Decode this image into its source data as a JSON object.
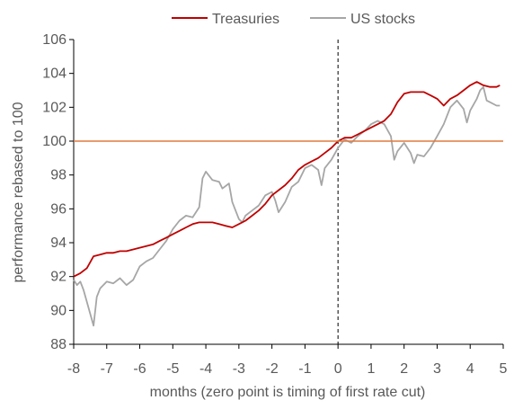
{
  "chart_data": {
    "type": "line",
    "xlabel": "months (zero point is timing of first rate cut)",
    "ylabel": "performance rebased to 100",
    "xlim": [
      -8,
      5
    ],
    "ylim": [
      88,
      106
    ],
    "xticks": [
      "-8",
      "-7",
      "-6",
      "-5",
      "-4",
      "-3",
      "-2",
      "-1",
      "0",
      "1",
      "2",
      "3",
      "4",
      "5"
    ],
    "yticks": [
      "88",
      "90",
      "92",
      "94",
      "96",
      "98",
      "100",
      "102",
      "104",
      "106"
    ],
    "legend_position": "top",
    "reference_line": {
      "y": 100,
      "color": "#E07A3F"
    },
    "event_line": {
      "x": 0,
      "style": "dashed"
    },
    "series": [
      {
        "name": "Treasuries",
        "color": "#C00000",
        "points": [
          [
            -8.0,
            92.0
          ],
          [
            -7.8,
            92.2
          ],
          [
            -7.6,
            92.5
          ],
          [
            -7.4,
            93.2
          ],
          [
            -7.2,
            93.3
          ],
          [
            -7.0,
            93.4
          ],
          [
            -6.8,
            93.4
          ],
          [
            -6.6,
            93.5
          ],
          [
            -6.4,
            93.5
          ],
          [
            -6.2,
            93.6
          ],
          [
            -6.0,
            93.7
          ],
          [
            -5.8,
            93.8
          ],
          [
            -5.6,
            93.9
          ],
          [
            -5.4,
            94.1
          ],
          [
            -5.2,
            94.3
          ],
          [
            -5.0,
            94.5
          ],
          [
            -4.8,
            94.7
          ],
          [
            -4.6,
            94.9
          ],
          [
            -4.4,
            95.1
          ],
          [
            -4.2,
            95.2
          ],
          [
            -4.0,
            95.2
          ],
          [
            -3.8,
            95.2
          ],
          [
            -3.6,
            95.1
          ],
          [
            -3.4,
            95.0
          ],
          [
            -3.2,
            94.9
          ],
          [
            -3.0,
            95.1
          ],
          [
            -2.8,
            95.3
          ],
          [
            -2.6,
            95.6
          ],
          [
            -2.4,
            95.9
          ],
          [
            -2.2,
            96.3
          ],
          [
            -2.0,
            96.8
          ],
          [
            -1.8,
            97.1
          ],
          [
            -1.6,
            97.4
          ],
          [
            -1.4,
            97.8
          ],
          [
            -1.2,
            98.3
          ],
          [
            -1.0,
            98.6
          ],
          [
            -0.8,
            98.8
          ],
          [
            -0.6,
            99.0
          ],
          [
            -0.4,
            99.3
          ],
          [
            -0.2,
            99.6
          ],
          [
            0.0,
            100.0
          ],
          [
            0.2,
            100.2
          ],
          [
            0.4,
            100.2
          ],
          [
            0.6,
            100.4
          ],
          [
            0.8,
            100.6
          ],
          [
            1.0,
            100.8
          ],
          [
            1.2,
            101.0
          ],
          [
            1.4,
            101.2
          ],
          [
            1.6,
            101.6
          ],
          [
            1.8,
            102.3
          ],
          [
            2.0,
            102.8
          ],
          [
            2.2,
            102.9
          ],
          [
            2.4,
            102.9
          ],
          [
            2.6,
            102.9
          ],
          [
            2.8,
            102.7
          ],
          [
            3.0,
            102.5
          ],
          [
            3.2,
            102.1
          ],
          [
            3.4,
            102.5
          ],
          [
            3.6,
            102.7
          ],
          [
            3.8,
            103.0
          ],
          [
            4.0,
            103.3
          ],
          [
            4.2,
            103.5
          ],
          [
            4.4,
            103.3
          ],
          [
            4.6,
            103.2
          ],
          [
            4.8,
            103.2
          ],
          [
            4.9,
            103.3
          ]
        ]
      },
      {
        "name": "US stocks",
        "color": "#A6A6A6",
        "points": [
          [
            -8.0,
            91.8
          ],
          [
            -7.9,
            91.5
          ],
          [
            -7.8,
            91.7
          ],
          [
            -7.7,
            91.2
          ],
          [
            -7.6,
            90.5
          ],
          [
            -7.5,
            89.8
          ],
          [
            -7.4,
            89.1
          ],
          [
            -7.3,
            90.8
          ],
          [
            -7.2,
            91.3
          ],
          [
            -7.0,
            91.7
          ],
          [
            -6.8,
            91.6
          ],
          [
            -6.6,
            91.9
          ],
          [
            -6.4,
            91.5
          ],
          [
            -6.2,
            91.8
          ],
          [
            -6.0,
            92.6
          ],
          [
            -5.8,
            92.9
          ],
          [
            -5.6,
            93.1
          ],
          [
            -5.4,
            93.6
          ],
          [
            -5.2,
            94.1
          ],
          [
            -5.0,
            94.8
          ],
          [
            -4.8,
            95.3
          ],
          [
            -4.6,
            95.6
          ],
          [
            -4.4,
            95.5
          ],
          [
            -4.2,
            96.1
          ],
          [
            -4.1,
            97.8
          ],
          [
            -4.0,
            98.2
          ],
          [
            -3.8,
            97.7
          ],
          [
            -3.6,
            97.6
          ],
          [
            -3.5,
            97.2
          ],
          [
            -3.3,
            97.5
          ],
          [
            -3.2,
            96.4
          ],
          [
            -3.0,
            95.4
          ],
          [
            -2.9,
            95.2
          ],
          [
            -2.8,
            95.6
          ],
          [
            -2.6,
            95.9
          ],
          [
            -2.4,
            96.2
          ],
          [
            -2.2,
            96.8
          ],
          [
            -2.0,
            97.0
          ],
          [
            -1.9,
            96.5
          ],
          [
            -1.8,
            95.8
          ],
          [
            -1.6,
            96.4
          ],
          [
            -1.4,
            97.3
          ],
          [
            -1.2,
            97.6
          ],
          [
            -1.0,
            98.4
          ],
          [
            -0.8,
            98.6
          ],
          [
            -0.6,
            98.3
          ],
          [
            -0.5,
            97.4
          ],
          [
            -0.4,
            98.4
          ],
          [
            -0.2,
            98.9
          ],
          [
            0.0,
            99.6
          ],
          [
            0.2,
            100.1
          ],
          [
            0.4,
            99.9
          ],
          [
            0.6,
            100.3
          ],
          [
            0.8,
            100.6
          ],
          [
            1.0,
            101.0
          ],
          [
            1.2,
            101.2
          ],
          [
            1.4,
            101.0
          ],
          [
            1.6,
            100.3
          ],
          [
            1.7,
            98.9
          ],
          [
            1.8,
            99.4
          ],
          [
            2.0,
            99.9
          ],
          [
            2.2,
            99.3
          ],
          [
            2.3,
            98.7
          ],
          [
            2.4,
            99.2
          ],
          [
            2.6,
            99.1
          ],
          [
            2.8,
            99.6
          ],
          [
            3.0,
            100.3
          ],
          [
            3.2,
            101.0
          ],
          [
            3.4,
            102.0
          ],
          [
            3.6,
            102.4
          ],
          [
            3.8,
            101.9
          ],
          [
            3.9,
            101.1
          ],
          [
            4.0,
            101.8
          ],
          [
            4.2,
            102.5
          ],
          [
            4.3,
            103.0
          ],
          [
            4.4,
            103.2
          ],
          [
            4.5,
            102.4
          ],
          [
            4.6,
            102.3
          ],
          [
            4.8,
            102.1
          ],
          [
            4.9,
            102.1
          ]
        ]
      }
    ]
  }
}
